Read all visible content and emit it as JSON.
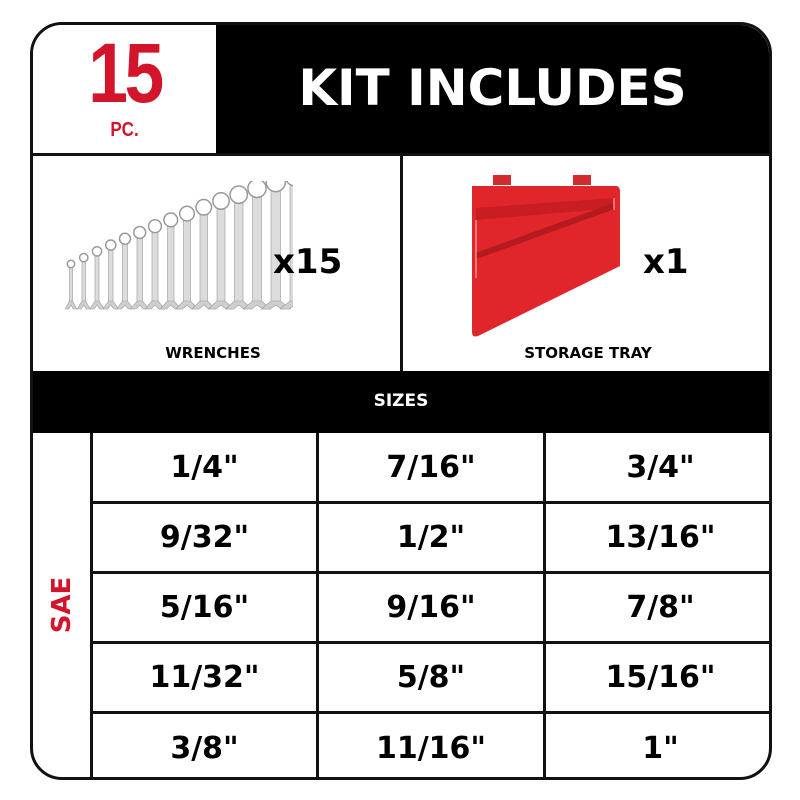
{
  "header": {
    "piece_count": "15",
    "piece_unit": "PC.",
    "title": "KIT INCLUDES"
  },
  "items": [
    {
      "name": "WRENCHES",
      "quantity": "x15",
      "icon": "wrench-set-image"
    },
    {
      "name": "STORAGE TRAY",
      "quantity": "x1",
      "icon": "storage-tray-image",
      "color": "#e0262b"
    }
  ],
  "sizes": {
    "title": "SIZES",
    "system": "SAE",
    "rows": [
      [
        "1/4\"",
        "7/16\"",
        "3/4\""
      ],
      [
        "9/32\"",
        "1/2\"",
        "13/16\""
      ],
      [
        "5/16\"",
        "9/16\"",
        "7/8\""
      ],
      [
        "11/32\"",
        "5/8\"",
        "15/16\""
      ],
      [
        "3/8\"",
        "11/16\"",
        "1\""
      ]
    ]
  },
  "colors": {
    "accent_red": "#d2152b",
    "border": "#111111"
  }
}
